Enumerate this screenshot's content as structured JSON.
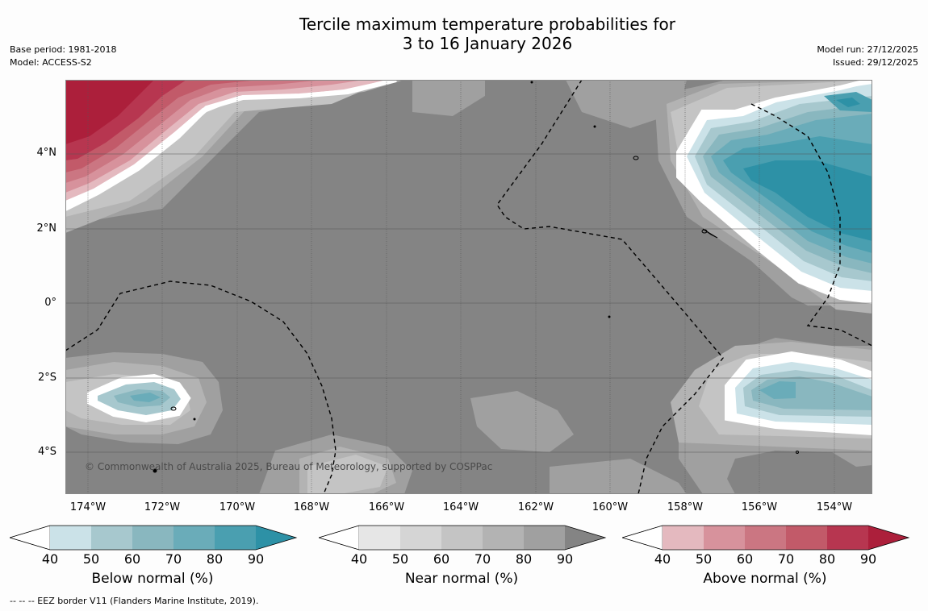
{
  "title": {
    "line1": "Tercile maximum temperature probabilities for",
    "line2": "3 to 16 January 2026"
  },
  "meta_left": {
    "base_period": "Base period: 1981-2018",
    "model": "Model: ACCESS-S2"
  },
  "meta_right": {
    "model_run": "Model run: 27/12/2025",
    "issued": "Issued: 29/12/2025"
  },
  "map": {
    "copyright": "© Commonwealth of Australia 2025, Bureau of Meteorology, supported by COSPPac",
    "y_ticks": [
      "4°N",
      "2°N",
      "0°",
      "2°S",
      "4°S"
    ],
    "x_ticks": [
      "174°W",
      "172°W",
      "170°W",
      "168°W",
      "166°W",
      "164°W",
      "162°W",
      "160°W",
      "158°W",
      "156°W",
      "154°W"
    ],
    "lat_range": [
      -5.1,
      6.0
    ],
    "lon_range": [
      -174.6,
      -152.9
    ]
  },
  "colorbars": [
    {
      "title": "Below normal (%)",
      "ticks": [
        "40",
        "50",
        "60",
        "70",
        "80",
        "90"
      ],
      "colors": [
        "#ffffff",
        "#cbe2e8",
        "#a7c8ce",
        "#89b7bf",
        "#6aacb9",
        "#4a9fb0",
        "#2d91a6"
      ]
    },
    {
      "title": "Near normal (%)",
      "ticks": [
        "40",
        "50",
        "60",
        "70",
        "80",
        "90"
      ],
      "colors": [
        "#ffffff",
        "#e6e6e6",
        "#d5d5d5",
        "#c4c4c4",
        "#b3b3b3",
        "#a0a0a0",
        "#848484"
      ]
    },
    {
      "title": "Above normal (%)",
      "ticks": [
        "40",
        "50",
        "60",
        "70",
        "80",
        "90"
      ],
      "colors": [
        "#ffffff",
        "#e4b9bf",
        "#d7929c",
        "#cb7682",
        "#c25a69",
        "#b73650",
        "#ac1f3b"
      ]
    }
  ],
  "footnote": "--  --  -- EEZ border V11 (Flanders Marine Institute, 2019)."
}
